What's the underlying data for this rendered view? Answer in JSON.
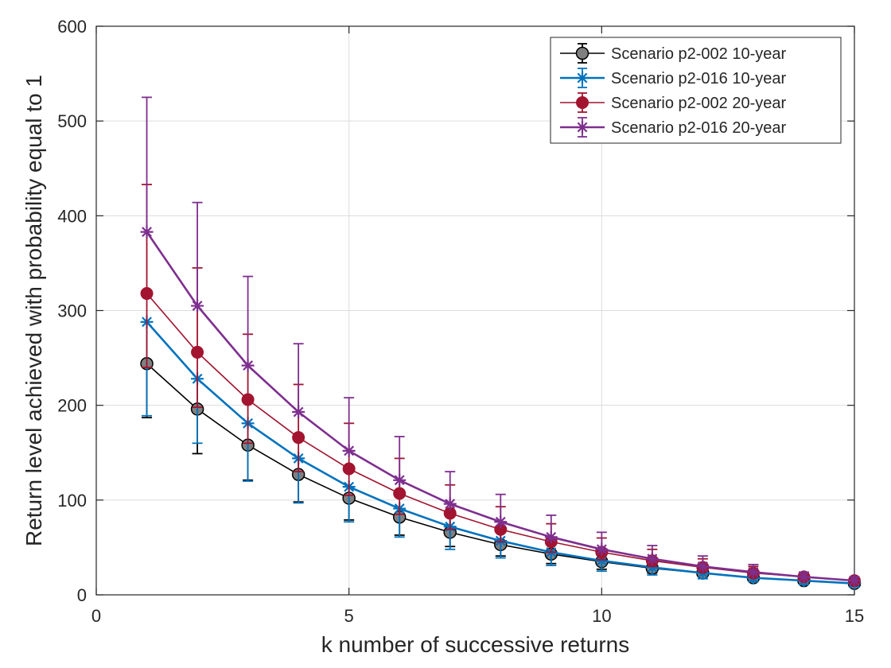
{
  "chart_data": {
    "type": "line",
    "title": "",
    "xlabel": "k number of successive returns",
    "ylabel": "Return level achieved with probability equal to 1",
    "xlim": [
      0,
      15
    ],
    "ylim": [
      0,
      600
    ],
    "xticks": [
      0,
      5,
      10,
      15
    ],
    "yticks": [
      0,
      100,
      200,
      300,
      400,
      500,
      600
    ],
    "grid": true,
    "legend_position": "top-right",
    "x": [
      1,
      2,
      3,
      4,
      5,
      6,
      7,
      8,
      9,
      10,
      11,
      12,
      13,
      14,
      15
    ],
    "series": [
      {
        "name": "Scenario p2-002 10-year",
        "color": "#000000",
        "marker": "circle",
        "marker_fill": "#808080",
        "values": [
          244,
          196,
          158,
          127,
          102,
          82,
          66,
          53,
          43,
          35,
          28,
          23,
          18,
          15,
          12
        ],
        "lower": [
          187,
          149,
          121,
          98,
          79,
          63,
          51,
          41,
          33,
          27,
          23,
          19,
          15,
          12,
          10
        ],
        "upper": [
          244,
          196,
          158,
          127,
          102,
          82,
          66,
          53,
          43,
          35,
          28,
          23,
          18,
          15,
          12
        ]
      },
      {
        "name": "Scenario p2-016 10-year",
        "color": "#0072BD",
        "marker": "asterisk",
        "values": [
          288,
          228,
          181,
          144,
          114,
          91,
          72,
          57,
          45,
          36,
          29,
          23,
          18,
          15,
          12
        ],
        "lower": [
          189,
          160,
          120,
          97,
          77,
          61,
          48,
          39,
          31,
          25,
          21,
          17,
          14,
          11,
          9
        ],
        "upper": [
          288,
          228,
          181,
          144,
          114,
          91,
          72,
          57,
          45,
          36,
          29,
          23,
          18,
          15,
          12
        ]
      },
      {
        "name": "Scenario p2-002 20-year",
        "color": "#A2142F",
        "marker": "dot",
        "values": [
          318,
          256,
          206,
          166,
          133,
          107,
          86,
          69,
          56,
          45,
          36,
          29,
          23,
          19,
          15
        ],
        "lower": [
          240,
          198,
          160,
          130,
          105,
          85,
          69,
          56,
          45,
          37,
          30,
          25,
          20,
          16,
          13
        ],
        "upper": [
          433,
          345,
          275,
          222,
          181,
          144,
          116,
          93,
          75,
          60,
          48,
          38,
          30,
          24,
          19
        ]
      },
      {
        "name": "Scenario p2-016 20-year",
        "color": "#7E2F8E",
        "marker": "asterisk",
        "values": [
          383,
          305,
          242,
          193,
          152,
          121,
          96,
          77,
          61,
          48,
          38,
          30,
          24,
          19,
          15
        ],
        "lower": [
          383,
          305,
          242,
          193,
          152,
          121,
          96,
          77,
          61,
          48,
          38,
          30,
          24,
          19,
          15
        ],
        "upper": [
          525,
          414,
          336,
          265,
          208,
          167,
          130,
          106,
          84,
          66,
          52,
          41,
          32,
          24,
          19
        ]
      }
    ]
  }
}
